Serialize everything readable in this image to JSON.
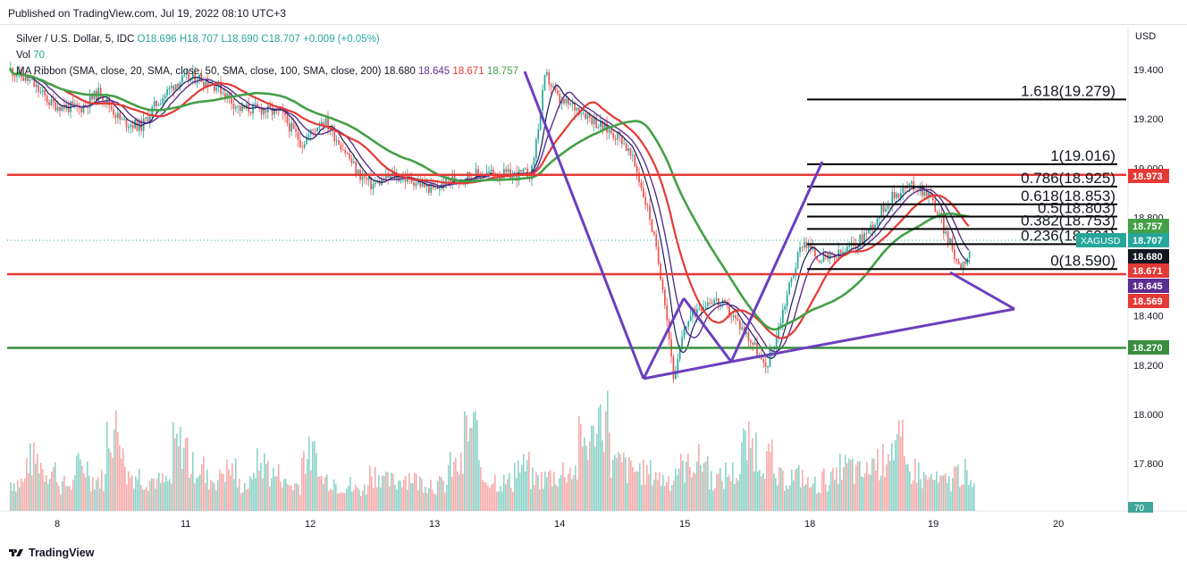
{
  "header": {
    "published": "Published on TradingView.com, Jul 19, 2022 08:10 UTC+3"
  },
  "legend": {
    "symbol": "Silver / U.S. Dollar, 5, IDC",
    "o": "O18.696",
    "h": "H18.707",
    "l": "L18.690",
    "c": "C18.707",
    "chg": "+0.009 (+0.05%)",
    "vol_label": "Vol",
    "vol_value": "70",
    "ribbon_label": "MA Ribbon (SMA, close, 20, SMA, close, 50, SMA, close, 100, SMA, close, 200)",
    "ribbon_v1": "18.680",
    "ribbon_v2": "18.645",
    "ribbon_v3": "18.671",
    "ribbon_v4": "18.757"
  },
  "footer": {
    "brand": "TradingView"
  },
  "colors": {
    "up": "#26a69a",
    "down": "#ef5350",
    "ma20": "#1a1a5e",
    "ma50": "#5b2e91",
    "ma100": "#e53935",
    "ma200": "#43a047",
    "pattern": "#6b3fbf",
    "hline_red": "#e53935",
    "hline_green": "#388e3c",
    "fib": "#000000"
  },
  "chart_data": {
    "type": "candlestick",
    "currency_label": "USD",
    "y_ticks": [
      "19.400",
      "19.200",
      "19.000",
      "18.800",
      "18.400",
      "18.200",
      "18.000",
      "17.800"
    ],
    "ylim": [
      17.68,
      19.52
    ],
    "x_ticks": [
      "8",
      "11",
      "12",
      "13",
      "14",
      "15",
      "18",
      "19",
      "20"
    ],
    "horizontal_lines": [
      {
        "price": 18.973,
        "color": "red"
      },
      {
        "price": 18.569,
        "color": "red"
      },
      {
        "price": 18.27,
        "color": "green"
      }
    ],
    "fibonacci": [
      {
        "ratio": "1.618",
        "price": "19.279"
      },
      {
        "ratio": "1",
        "price": "19.016"
      },
      {
        "ratio": "0.786",
        "price": "18.925"
      },
      {
        "ratio": "0.618",
        "price": "18.853"
      },
      {
        "ratio": "0.5",
        "price": "18.803"
      },
      {
        "ratio": "0.382",
        "price": "18.753"
      },
      {
        "ratio": "0.236",
        "price": "18.691"
      },
      {
        "ratio": "0",
        "price": "18.590"
      }
    ],
    "price_tags": [
      {
        "label": "",
        "value": "18.973",
        "color": "#e53935"
      },
      {
        "label": "",
        "value": "18.757",
        "color": "#43a047"
      },
      {
        "label": "XAGUSD",
        "value": "18.707",
        "color": "#26a69a"
      },
      {
        "label": "",
        "value": "18.680",
        "color": "#131722"
      },
      {
        "label": "",
        "value": "18.671",
        "color": "#e53935"
      },
      {
        "label": "",
        "value": "18.645",
        "color": "#5b2e91"
      },
      {
        "label": "",
        "value": "18.569",
        "color": "#e53935"
      },
      {
        "label": "",
        "value": "18.270",
        "color": "#388e3c"
      }
    ],
    "volume_tag": "70",
    "price_path": [
      [
        0,
        19.4
      ],
      [
        0.3,
        19.35
      ],
      [
        0.6,
        19.26
      ],
      [
        1.0,
        19.24
      ],
      [
        1.3,
        19.31
      ],
      [
        1.6,
        19.19
      ],
      [
        1.9,
        19.17
      ],
      [
        2.1,
        19.26
      ],
      [
        2.4,
        19.35
      ],
      [
        2.7,
        19.37
      ],
      [
        3.0,
        19.33
      ],
      [
        3.3,
        19.24
      ],
      [
        3.6,
        19.24
      ],
      [
        3.9,
        19.22
      ],
      [
        4.2,
        19.1
      ],
      [
        4.5,
        19.2
      ],
      [
        4.8,
        19.08
      ],
      [
        5.0,
        18.98
      ],
      [
        5.2,
        18.93
      ],
      [
        5.5,
        18.97
      ],
      [
        5.8,
        18.95
      ],
      [
        6.1,
        18.91
      ],
      [
        6.3,
        18.95
      ],
      [
        6.6,
        18.97
      ],
      [
        6.9,
        18.98
      ],
      [
        7.2,
        18.97
      ],
      [
        7.5,
        18.98
      ],
      [
        7.7,
        19.38
      ],
      [
        7.9,
        19.27
      ],
      [
        8.2,
        19.24
      ],
      [
        8.5,
        19.17
      ],
      [
        8.8,
        19.12
      ],
      [
        9.0,
        19.0
      ],
      [
        9.2,
        18.8
      ],
      [
        9.4,
        18.5
      ],
      [
        9.55,
        18.13
      ],
      [
        9.7,
        18.36
      ],
      [
        9.9,
        18.44
      ],
      [
        10.1,
        18.47
      ],
      [
        10.3,
        18.43
      ],
      [
        10.5,
        18.36
      ],
      [
        10.7,
        18.28
      ],
      [
        10.85,
        18.18
      ],
      [
        11.0,
        18.3
      ],
      [
        11.2,
        18.52
      ],
      [
        11.4,
        18.71
      ],
      [
        11.6,
        18.64
      ],
      [
        11.8,
        18.63
      ],
      [
        12.0,
        18.66
      ],
      [
        12.2,
        18.7
      ],
      [
        12.4,
        18.77
      ],
      [
        12.6,
        18.86
      ],
      [
        12.8,
        18.91
      ],
      [
        13.0,
        18.93
      ],
      [
        13.2,
        18.9
      ],
      [
        13.35,
        18.81
      ],
      [
        13.5,
        18.7
      ],
      [
        13.65,
        18.6
      ],
      [
        13.8,
        18.66
      ],
      [
        13.95,
        18.69
      ]
    ],
    "volume_path": [
      0.2,
      0.35,
      0.28,
      0.18,
      0.3,
      0.22,
      0.55,
      0.25,
      0.22,
      0.2,
      0.45,
      0.3,
      0.22,
      0.28,
      0.18,
      0.32,
      0.25,
      0.18,
      0.38,
      0.22,
      0.18,
      0.15,
      0.26,
      0.2,
      0.24,
      0.2,
      0.18,
      0.3,
      0.55,
      0.22,
      0.2,
      0.3,
      0.22,
      0.24,
      0.28,
      0.48,
      0.65,
      0.32,
      0.28,
      0.26,
      0.22,
      0.3,
      0.34,
      0.22,
      0.26,
      0.45,
      0.36,
      0.22,
      0.24,
      0.18,
      0.22,
      0.3,
      0.26,
      0.34,
      0.46,
      0.28,
      0.22,
      0.2,
      0.26,
      0.16
    ]
  }
}
